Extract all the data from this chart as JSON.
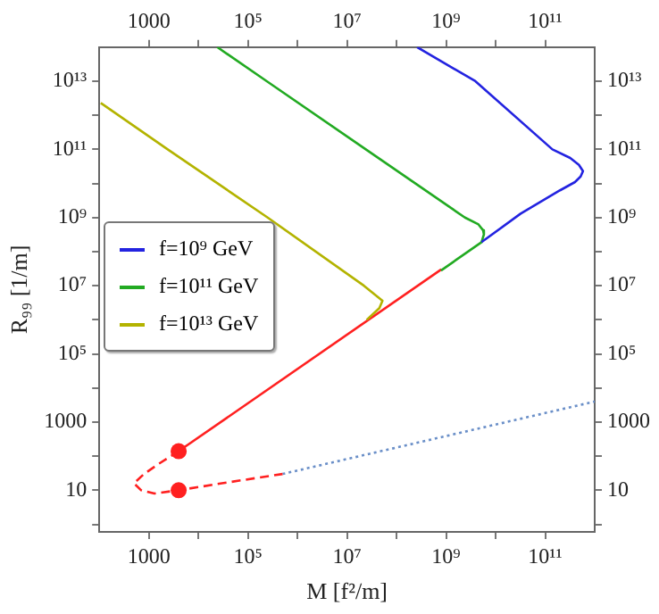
{
  "chart_data": {
    "type": "line",
    "xlabel": "M [f²/m]",
    "ylabel": "R₉₉ [1/m]",
    "log": "xy",
    "xlim": [
      100,
      1000000000000.0
    ],
    "ylim": [
      0.6,
      100000000000000.0
    ],
    "xticks": [
      {
        "value": 1000,
        "label": "1000"
      },
      {
        "value": 10000.0,
        "label": null
      },
      {
        "value": 100000.0,
        "label": "10⁵"
      },
      {
        "value": 1000000.0,
        "label": null
      },
      {
        "value": 10000000.0,
        "label": "10⁷"
      },
      {
        "value": 100000000.0,
        "label": null
      },
      {
        "value": 1000000000.0,
        "label": "10⁹"
      },
      {
        "value": 10000000000.0,
        "label": null
      },
      {
        "value": 100000000000.0,
        "label": "10¹¹"
      }
    ],
    "yticks": [
      {
        "value": 1,
        "label": null
      },
      {
        "value": 10,
        "label": "10"
      },
      {
        "value": 100,
        "label": null
      },
      {
        "value": 1000,
        "label": "1000"
      },
      {
        "value": 10000.0,
        "label": null
      },
      {
        "value": 100000.0,
        "label": "10⁵"
      },
      {
        "value": 1000000.0,
        "label": null
      },
      {
        "value": 10000000.0,
        "label": "10⁷"
      },
      {
        "value": 100000000.0,
        "label": null
      },
      {
        "value": 1000000000.0,
        "label": "10⁹"
      },
      {
        "value": 10000000000.0,
        "label": null
      },
      {
        "value": 100000000000.0,
        "label": "10¹¹"
      },
      {
        "value": 1000000000000.0,
        "label": null
      },
      {
        "value": 10000000000000.0,
        "label": "10¹³"
      }
    ],
    "grid": false,
    "legend": "left",
    "marker": "none",
    "line_style": "solid",
    "series": [
      {
        "name": "f=10⁹ GeV",
        "color": "#2323e0",
        "x": [
          260000000.0,
          3900000000.0,
          140000000000.0,
          320000000000.0,
          480000000000.0,
          580000000000.0,
          520000000000.0,
          400000000000.0,
          200000000000.0,
          32000000000.0,
          5200000000.0
        ],
        "values": [
          100000000000000.0,
          10000000000000.0,
          100000000000.0,
          56000000000.0,
          35000000000.0,
          23000000000.0,
          16000000000.0,
          11000000000.0,
          6300000000.0,
          1300000000.0,
          190000000.0
        ]
      },
      {
        "name": "f=10¹¹ GeV",
        "color": "#22aa22",
        "x": [
          24000.0,
          240000.0,
          24000000.0,
          2400000000.0,
          4500000000.0,
          5600000000.0,
          5800000000.0,
          5200000000.0,
          790000000.0
        ],
        "values": [
          100000000000000.0,
          10000000000000.0,
          100000000000.0,
          1000000000.0,
          630000000.0,
          420000000.0,
          320000000.0,
          190000000.0,
          28000000.0
        ]
      },
      {
        "name": "f=10¹³ GeV",
        "color": "#b3b300",
        "x": [
          107,
          2400,
          250000.0,
          22000000.0,
          52000000.0,
          45000000.0,
          25000000.0
        ],
        "values": [
          2300000000000.0,
          100000000000.0,
          1000000000.0,
          10000000.0,
          3600000.0,
          2200000.0,
          1000000.0
        ]
      },
      {
        "color": "#ff2020",
        "x": [
          4000,
          800000000.0
        ],
        "values": [
          140,
          30000000.0
        ]
      },
      {
        "color": "#ff2020",
        "line_style": "dashed",
        "x": [
          4000,
          1600,
          800,
          500,
          700,
          1300,
          4000,
          30000,
          500000.0
        ],
        "values": [
          140,
          60,
          30,
          16,
          10,
          8,
          10,
          16,
          30
        ]
      },
      {
        "color": "#6a8fc8",
        "line_style": "dotted",
        "x": [
          500000.0,
          1000000000000.0
        ],
        "values": [
          30,
          4000
        ]
      },
      {
        "type": "scatter",
        "marker": "circle",
        "color": "#ff2020",
        "x": [
          4000,
          4000
        ],
        "values": [
          140,
          10
        ]
      }
    ]
  }
}
